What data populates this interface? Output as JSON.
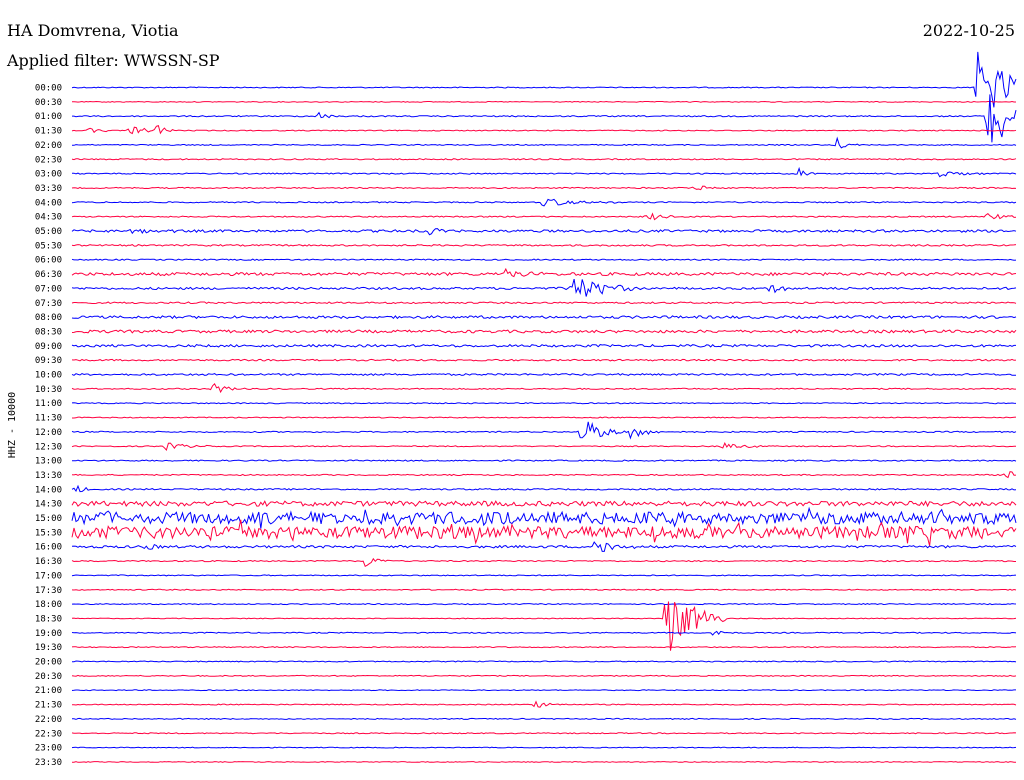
{
  "header": {
    "station": "HA Domvrena, Viotia",
    "date": "2022-10-25",
    "filter": "Applied filter: WWSSN-SP"
  },
  "chart_data": {
    "type": "line",
    "title": "HA Domvrena, Viotia",
    "subtitle": "Applied filter: WWSSN-SP",
    "date": "2022-10-25",
    "ylabel": "HHZ - 10000",
    "xlabel": "",
    "grid": false,
    "colors": [
      "#0000ff",
      "#ff0040"
    ],
    "rows": [
      "00:00",
      "00:30",
      "01:00",
      "01:30",
      "02:00",
      "02:30",
      "03:00",
      "03:30",
      "04:00",
      "04:30",
      "05:00",
      "05:30",
      "06:00",
      "06:30",
      "07:00",
      "07:30",
      "08:00",
      "08:30",
      "09:00",
      "09:30",
      "10:00",
      "10:30",
      "11:00",
      "11:30",
      "12:00",
      "12:30",
      "13:00",
      "13:30",
      "14:00",
      "14:30",
      "15:00",
      "15:30",
      "16:00",
      "16:30",
      "17:00",
      "17:30",
      "18:00",
      "18:30",
      "19:00",
      "19:30",
      "20:00",
      "20:30",
      "21:00",
      "21:30",
      "22:00",
      "22:30",
      "23:00",
      "23:30"
    ],
    "noise_level": [
      0.5,
      0.4,
      0.6,
      0.5,
      0.5,
      0.6,
      0.6,
      0.6,
      0.6,
      0.6,
      1.2,
      0.8,
      0.6,
      1.5,
      1.1,
      0.8,
      1.3,
      1.4,
      1.2,
      0.8,
      0.9,
      0.6,
      0.5,
      0.5,
      0.6,
      0.5,
      0.6,
      0.6,
      0.7,
      2.5,
      6.0,
      6.0,
      1.2,
      0.6,
      0.5,
      0.5,
      0.5,
      0.4,
      0.5,
      0.5,
      0.5,
      0.5,
      0.4,
      0.5,
      0.5,
      0.5,
      0.4,
      0.4
    ],
    "events": [
      {
        "row": 0,
        "t": 0.96,
        "amp": 40,
        "dur": 0.03
      },
      {
        "row": 2,
        "t": 0.26,
        "amp": 5,
        "dur": 0.01
      },
      {
        "row": 2,
        "t": 0.97,
        "amp": 30,
        "dur": 0.04
      },
      {
        "row": 3,
        "t": 0.02,
        "amp": 6,
        "dur": 0.01
      },
      {
        "row": 3,
        "t": 0.06,
        "amp": 7,
        "dur": 0.012
      },
      {
        "row": 3,
        "t": 0.09,
        "amp": 6,
        "dur": 0.012
      },
      {
        "row": 4,
        "t": 0.81,
        "amp": 8,
        "dur": 0.01
      },
      {
        "row": 6,
        "t": 0.77,
        "amp": 5,
        "dur": 0.01
      },
      {
        "row": 6,
        "t": 0.92,
        "amp": 4,
        "dur": 0.02
      },
      {
        "row": 7,
        "t": 0.66,
        "amp": 3,
        "dur": 0.02
      },
      {
        "row": 8,
        "t": 0.5,
        "amp": 5,
        "dur": 0.03
      },
      {
        "row": 9,
        "t": 0.61,
        "amp": 7,
        "dur": 0.012
      },
      {
        "row": 9,
        "t": 0.97,
        "amp": 4,
        "dur": 0.02
      },
      {
        "row": 10,
        "t": 0.06,
        "amp": 5,
        "dur": 0.02
      },
      {
        "row": 10,
        "t": 0.38,
        "amp": 5,
        "dur": 0.012
      },
      {
        "row": 13,
        "t": 0.46,
        "amp": 5,
        "dur": 0.02
      },
      {
        "row": 14,
        "t": 0.53,
        "amp": 15,
        "dur": 0.03
      },
      {
        "row": 14,
        "t": 0.74,
        "amp": 5,
        "dur": 0.012
      },
      {
        "row": 21,
        "t": 0.15,
        "amp": 6,
        "dur": 0.015
      },
      {
        "row": 24,
        "t": 0.54,
        "amp": 14,
        "dur": 0.02
      },
      {
        "row": 24,
        "t": 0.59,
        "amp": 8,
        "dur": 0.015
      },
      {
        "row": 25,
        "t": 0.1,
        "amp": 4,
        "dur": 0.02
      },
      {
        "row": 25,
        "t": 0.69,
        "amp": 4,
        "dur": 0.02
      },
      {
        "row": 27,
        "t": 0.99,
        "amp": 5,
        "dur": 0.01
      },
      {
        "row": 28,
        "t": 0.005,
        "amp": 5,
        "dur": 0.01
      },
      {
        "row": 32,
        "t": 0.08,
        "amp": 6,
        "dur": 0.01
      },
      {
        "row": 32,
        "t": 0.55,
        "amp": 10,
        "dur": 0.02
      },
      {
        "row": 33,
        "t": 0.31,
        "amp": 6,
        "dur": 0.015
      },
      {
        "row": 37,
        "t": 0.63,
        "amp": 38,
        "dur": 0.025
      },
      {
        "row": 38,
        "t": 0.68,
        "amp": 4,
        "dur": 0.01
      },
      {
        "row": 43,
        "t": 0.49,
        "amp": 4,
        "dur": 0.015
      }
    ]
  }
}
